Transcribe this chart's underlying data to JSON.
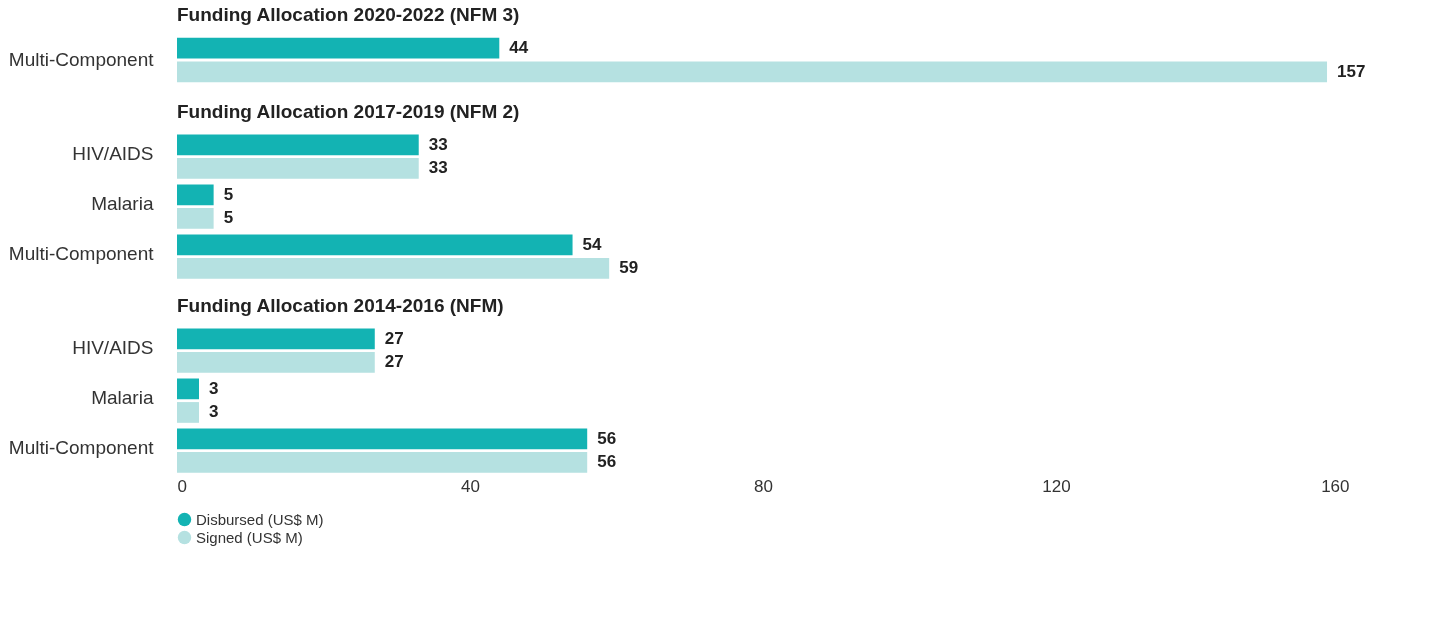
{
  "chart_data": [
    {
      "type": "bar",
      "orientation": "horizontal",
      "title": "Funding Allocation 2020-2022 (NFM 3)",
      "categories": [
        "Multi-Component"
      ],
      "series": [
        {
          "color": "#13b3b3",
          "values": [
            44
          ]
        },
        {
          "color": "#b5e1e1",
          "values": [
            157
          ]
        }
      ],
      "xlim": [
        0,
        160
      ],
      "tick_labels": "y",
      "data_labels": true
    },
    {
      "type": "bar",
      "orientation": "horizontal",
      "title": "Funding Allocation 2017-2019 (NFM 2)",
      "categories": [
        "HIV/AIDS",
        "Malaria",
        "Multi-Component"
      ],
      "series": [
        {
          "color": "#13b3b3",
          "values": [
            33,
            5,
            54
          ]
        },
        {
          "color": "#b5e1e1",
          "values": [
            33,
            5,
            59
          ]
        }
      ],
      "xlim": [
        0,
        160
      ],
      "tick_labels": "y",
      "data_labels": true
    },
    {
      "type": "bar",
      "orientation": "horizontal",
      "title": "Funding Allocation 2014-2016 (NFM)",
      "categories": [
        "HIV/AIDS",
        "Malaria",
        "Multi-Component"
      ],
      "series": [
        {
          "name": "Disbursed (US$ M)",
          "color": "#13b3b3",
          "values": [
            27,
            3,
            56
          ]
        },
        {
          "name": "Signed (US$ M)",
          "color": "#b5e1e1",
          "values": [
            27,
            3,
            56
          ]
        }
      ],
      "xlim": [
        0,
        160
      ],
      "xticks": [
        0,
        40,
        80,
        120,
        160
      ],
      "data_labels": true,
      "legend": "bottom"
    }
  ]
}
